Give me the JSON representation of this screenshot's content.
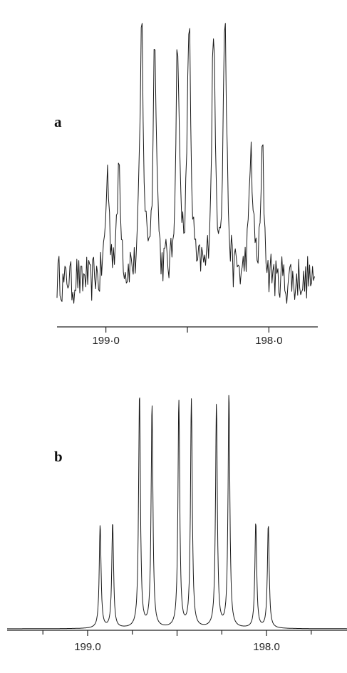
{
  "chart_data": [
    {
      "type": "line",
      "panel_label": "a",
      "title": "",
      "xlabel": "",
      "ylabel": "",
      "xlim": [
        199.3,
        197.7
      ],
      "ylim": [
        -0.15,
        1.0
      ],
      "x_ticks": [
        199.0,
        198.5,
        198.0
      ],
      "tick_labels": [
        "199·0",
        "198·0"
      ],
      "grid": false,
      "legend": "none",
      "line_color": "#1a1a1a",
      "peaks": [
        {
          "x": 198.99,
          "y": 0.42
        },
        {
          "x": 198.92,
          "y": 0.44
        },
        {
          "x": 198.78,
          "y": 0.96
        },
        {
          "x": 198.7,
          "y": 0.92
        },
        {
          "x": 198.56,
          "y": 0.9
        },
        {
          "x": 198.49,
          "y": 0.97
        },
        {
          "x": 198.34,
          "y": 0.95
        },
        {
          "x": 198.27,
          "y": 1.0
        },
        {
          "x": 198.11,
          "y": 0.5
        },
        {
          "x": 198.04,
          "y": 0.46
        }
      ],
      "noise": 0.08
    },
    {
      "type": "line",
      "panel_label": "b",
      "title": "",
      "xlabel": "",
      "ylabel": "",
      "xlim": [
        199.45,
        197.55
      ],
      "ylim": [
        0,
        1.0
      ],
      "x_ticks": [
        199.0,
        198.5,
        198.0
      ],
      "tick_labels": [
        "199.0",
        "198.0"
      ],
      "grid": false,
      "legend": "none",
      "line_color": "#1a1a1a",
      "peaks": [
        {
          "x": 198.93,
          "y": 0.44
        },
        {
          "x": 198.86,
          "y": 0.45
        },
        {
          "x": 198.71,
          "y": 1.0
        },
        {
          "x": 198.64,
          "y": 0.95
        },
        {
          "x": 198.49,
          "y": 0.97
        },
        {
          "x": 198.42,
          "y": 0.97
        },
        {
          "x": 198.28,
          "y": 0.95
        },
        {
          "x": 198.21,
          "y": 1.0
        },
        {
          "x": 198.06,
          "y": 0.45
        },
        {
          "x": 197.99,
          "y": 0.44
        }
      ],
      "noise": 0
    }
  ]
}
